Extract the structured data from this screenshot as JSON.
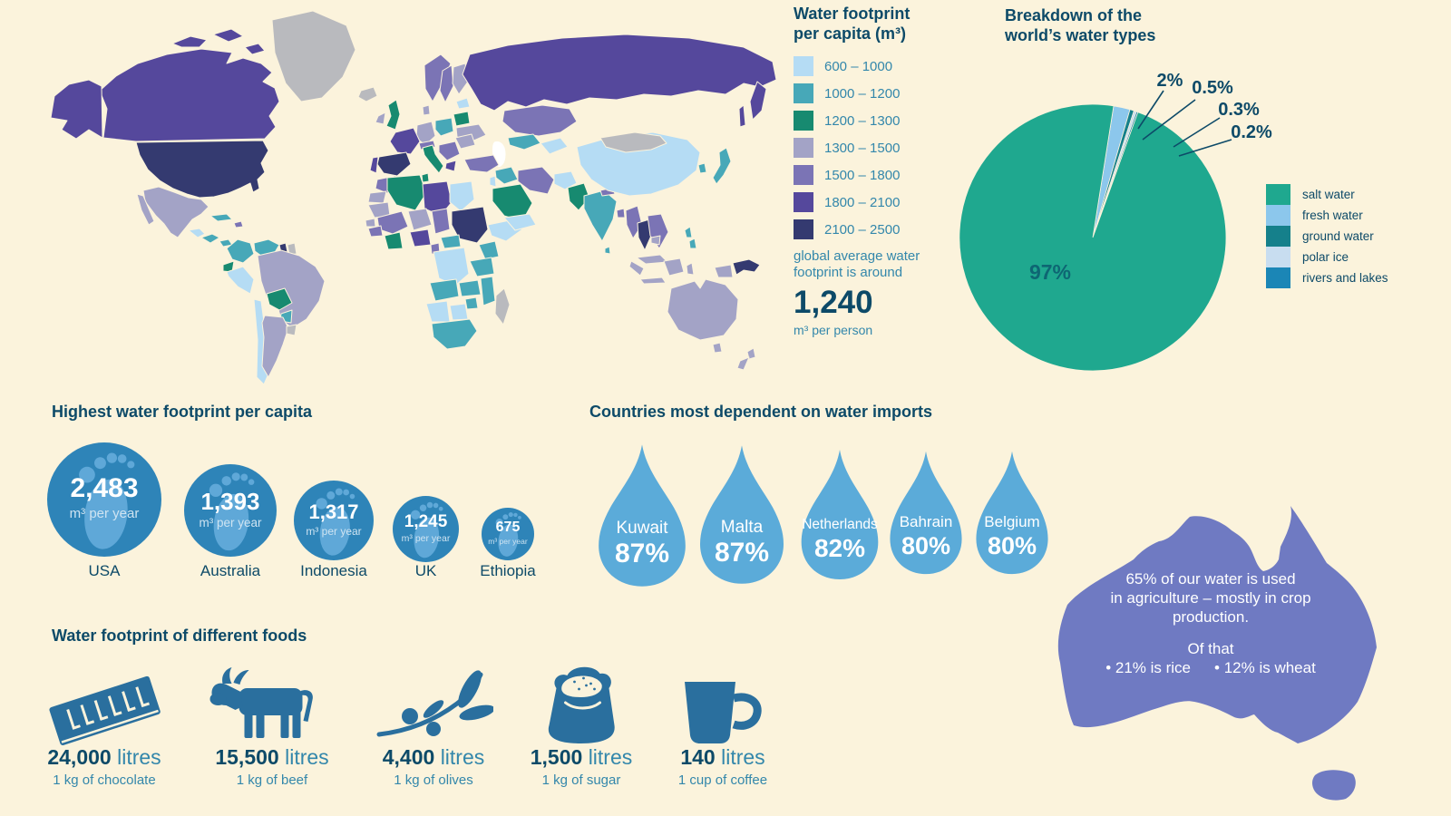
{
  "colors": {
    "bg": "#fbf3dc",
    "ink": "#0d4a68",
    "mid": "#3387ab",
    "c1": "#b5dcf4",
    "c2": "#47a8b8",
    "c3": "#178a70",
    "c4": "#a3a3c6",
    "c5": "#7b74b5",
    "c6": "#55489c",
    "c7": "#343a70",
    "nodata": "#b9babe",
    "circle": "#2e84b8",
    "foot": "#5fa8d8",
    "drop": "#5babd9",
    "aus": "#6f7ac2",
    "food": "#2a6f9e"
  },
  "chart_data": [
    {
      "type": "heatmap",
      "subtype": "choropleth-world-map",
      "title": "Water footprint per capita (m³)",
      "bins": [
        {
          "range": "600 – 1000",
          "color": "#b5dcf4"
        },
        {
          "range": "1000 – 1200",
          "color": "#47a8b8"
        },
        {
          "range": "1200 – 1300",
          "color": "#178a70"
        },
        {
          "range": "1300 – 1500",
          "color": "#a3a3c6"
        },
        {
          "range": "1500 – 1800",
          "color": "#7b74b5"
        },
        {
          "range": "1800 – 2100",
          "color": "#55489c"
        },
        {
          "range": "2100 – 2500",
          "color": "#343a70"
        }
      ],
      "note": "global average water footprint is around",
      "average_display": "1,240",
      "average_value": 1240,
      "average_unit": "m³ per person"
    },
    {
      "type": "pie",
      "title": "Breakdown of the world’s water types",
      "labels": [
        "salt water",
        "fresh water",
        "ground water",
        "polar ice",
        "rivers and lakes"
      ],
      "values": [
        97,
        2,
        0.5,
        0.3,
        0.2
      ],
      "display": [
        "97%",
        "2%",
        "0.5%",
        "0.3%",
        "0.2%"
      ],
      "colors": [
        "#1fa88f",
        "#8cc7ec",
        "#15808b",
        "#c8ddf0",
        "#1b86b6"
      ],
      "legend_position": "right"
    },
    {
      "type": "bar",
      "subtype": "pictogram-circles",
      "title": "Highest water footprint per capita",
      "categories": [
        "USA",
        "Australia",
        "Indonesia",
        "UK",
        "Ethiopia"
      ],
      "values": [
        2483,
        1393,
        1317,
        1245,
        675
      ],
      "display": [
        "2,483",
        "1,393",
        "1,317",
        "1,245",
        "675"
      ],
      "unit": "m³ per year"
    },
    {
      "type": "bar",
      "subtype": "pictogram-drops",
      "title": "Countries most dependent on water imports",
      "categories": [
        "Kuwait",
        "Malta",
        "Netherlands",
        "Bahrain",
        "Belgium"
      ],
      "values": [
        87,
        87,
        82,
        80,
        80
      ],
      "display": [
        "87%",
        "87%",
        "82%",
        "80%",
        "80%"
      ]
    },
    {
      "type": "bar",
      "subtype": "pictogram-foods",
      "title": "Water footprint of different foods",
      "categories": [
        "1 kg of chocolate",
        "1 kg of beef",
        "1 kg of olives",
        "1 kg of sugar",
        "1 cup of coffee"
      ],
      "values": [
        24000,
        15500,
        4400,
        1500,
        140
      ],
      "display": [
        "24,000",
        "15,500",
        "4,400",
        "1,500",
        "140"
      ],
      "unit": "litres",
      "icons": [
        "chocolate-bar-icon",
        "cow-icon",
        "olive-branch-icon",
        "sugar-bag-icon",
        "coffee-mug-icon"
      ]
    }
  ],
  "australia_note": {
    "line1": "65% of our water is used",
    "line2": "in agriculture – mostly in crop",
    "line3": "production.",
    "line4": "Of that",
    "bullet1": "• 21% is rice",
    "bullet2": "• 12% is wheat"
  }
}
